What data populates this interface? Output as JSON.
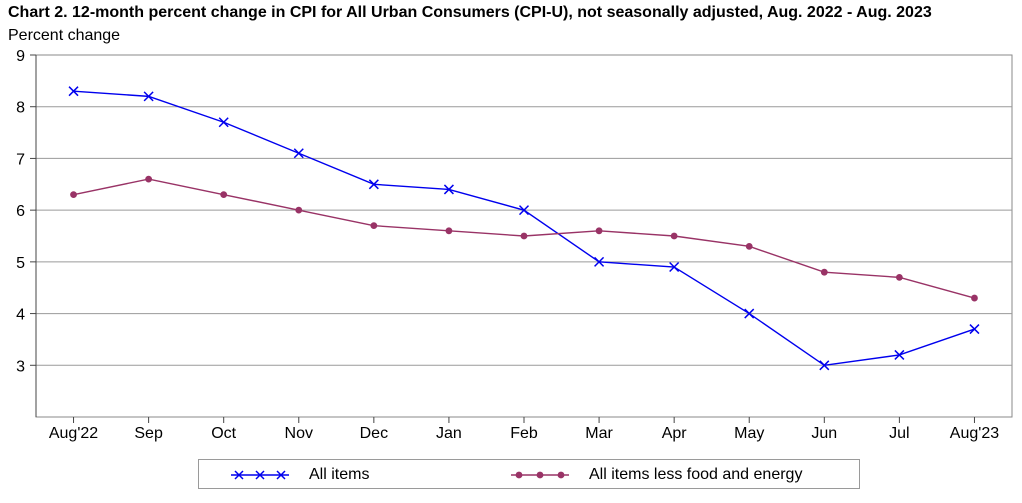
{
  "chart_data": {
    "type": "line",
    "title": "Chart 2. 12-month percent change in CPI for All Urban Consumers (CPI-U), not seasonally adjusted, Aug. 2022 - Aug. 2023",
    "ylabel": "Percent change",
    "xlabel": "",
    "ylim": [
      2,
      9
    ],
    "yticks": [
      9,
      8,
      7,
      6,
      5,
      4,
      3
    ],
    "grid": true,
    "legend_position": "bottom",
    "categories": [
      "Aug'22",
      "Sep",
      "Oct",
      "Nov",
      "Dec",
      "Jan",
      "Feb",
      "Mar",
      "Apr",
      "May",
      "Jun",
      "Jul",
      "Aug'23"
    ],
    "series": [
      {
        "name": "All items",
        "color": "#0000ee",
        "marker": "x",
        "values": [
          8.3,
          8.2,
          7.7,
          7.1,
          6.5,
          6.4,
          6.0,
          5.0,
          4.9,
          4.0,
          3.0,
          3.2,
          3.7
        ]
      },
      {
        "name": "All items less food and energy",
        "color": "#993366",
        "marker": "dot",
        "values": [
          6.3,
          6.6,
          6.3,
          6.0,
          5.7,
          5.6,
          5.5,
          5.6,
          5.5,
          5.3,
          4.8,
          4.7,
          4.3
        ]
      }
    ]
  }
}
